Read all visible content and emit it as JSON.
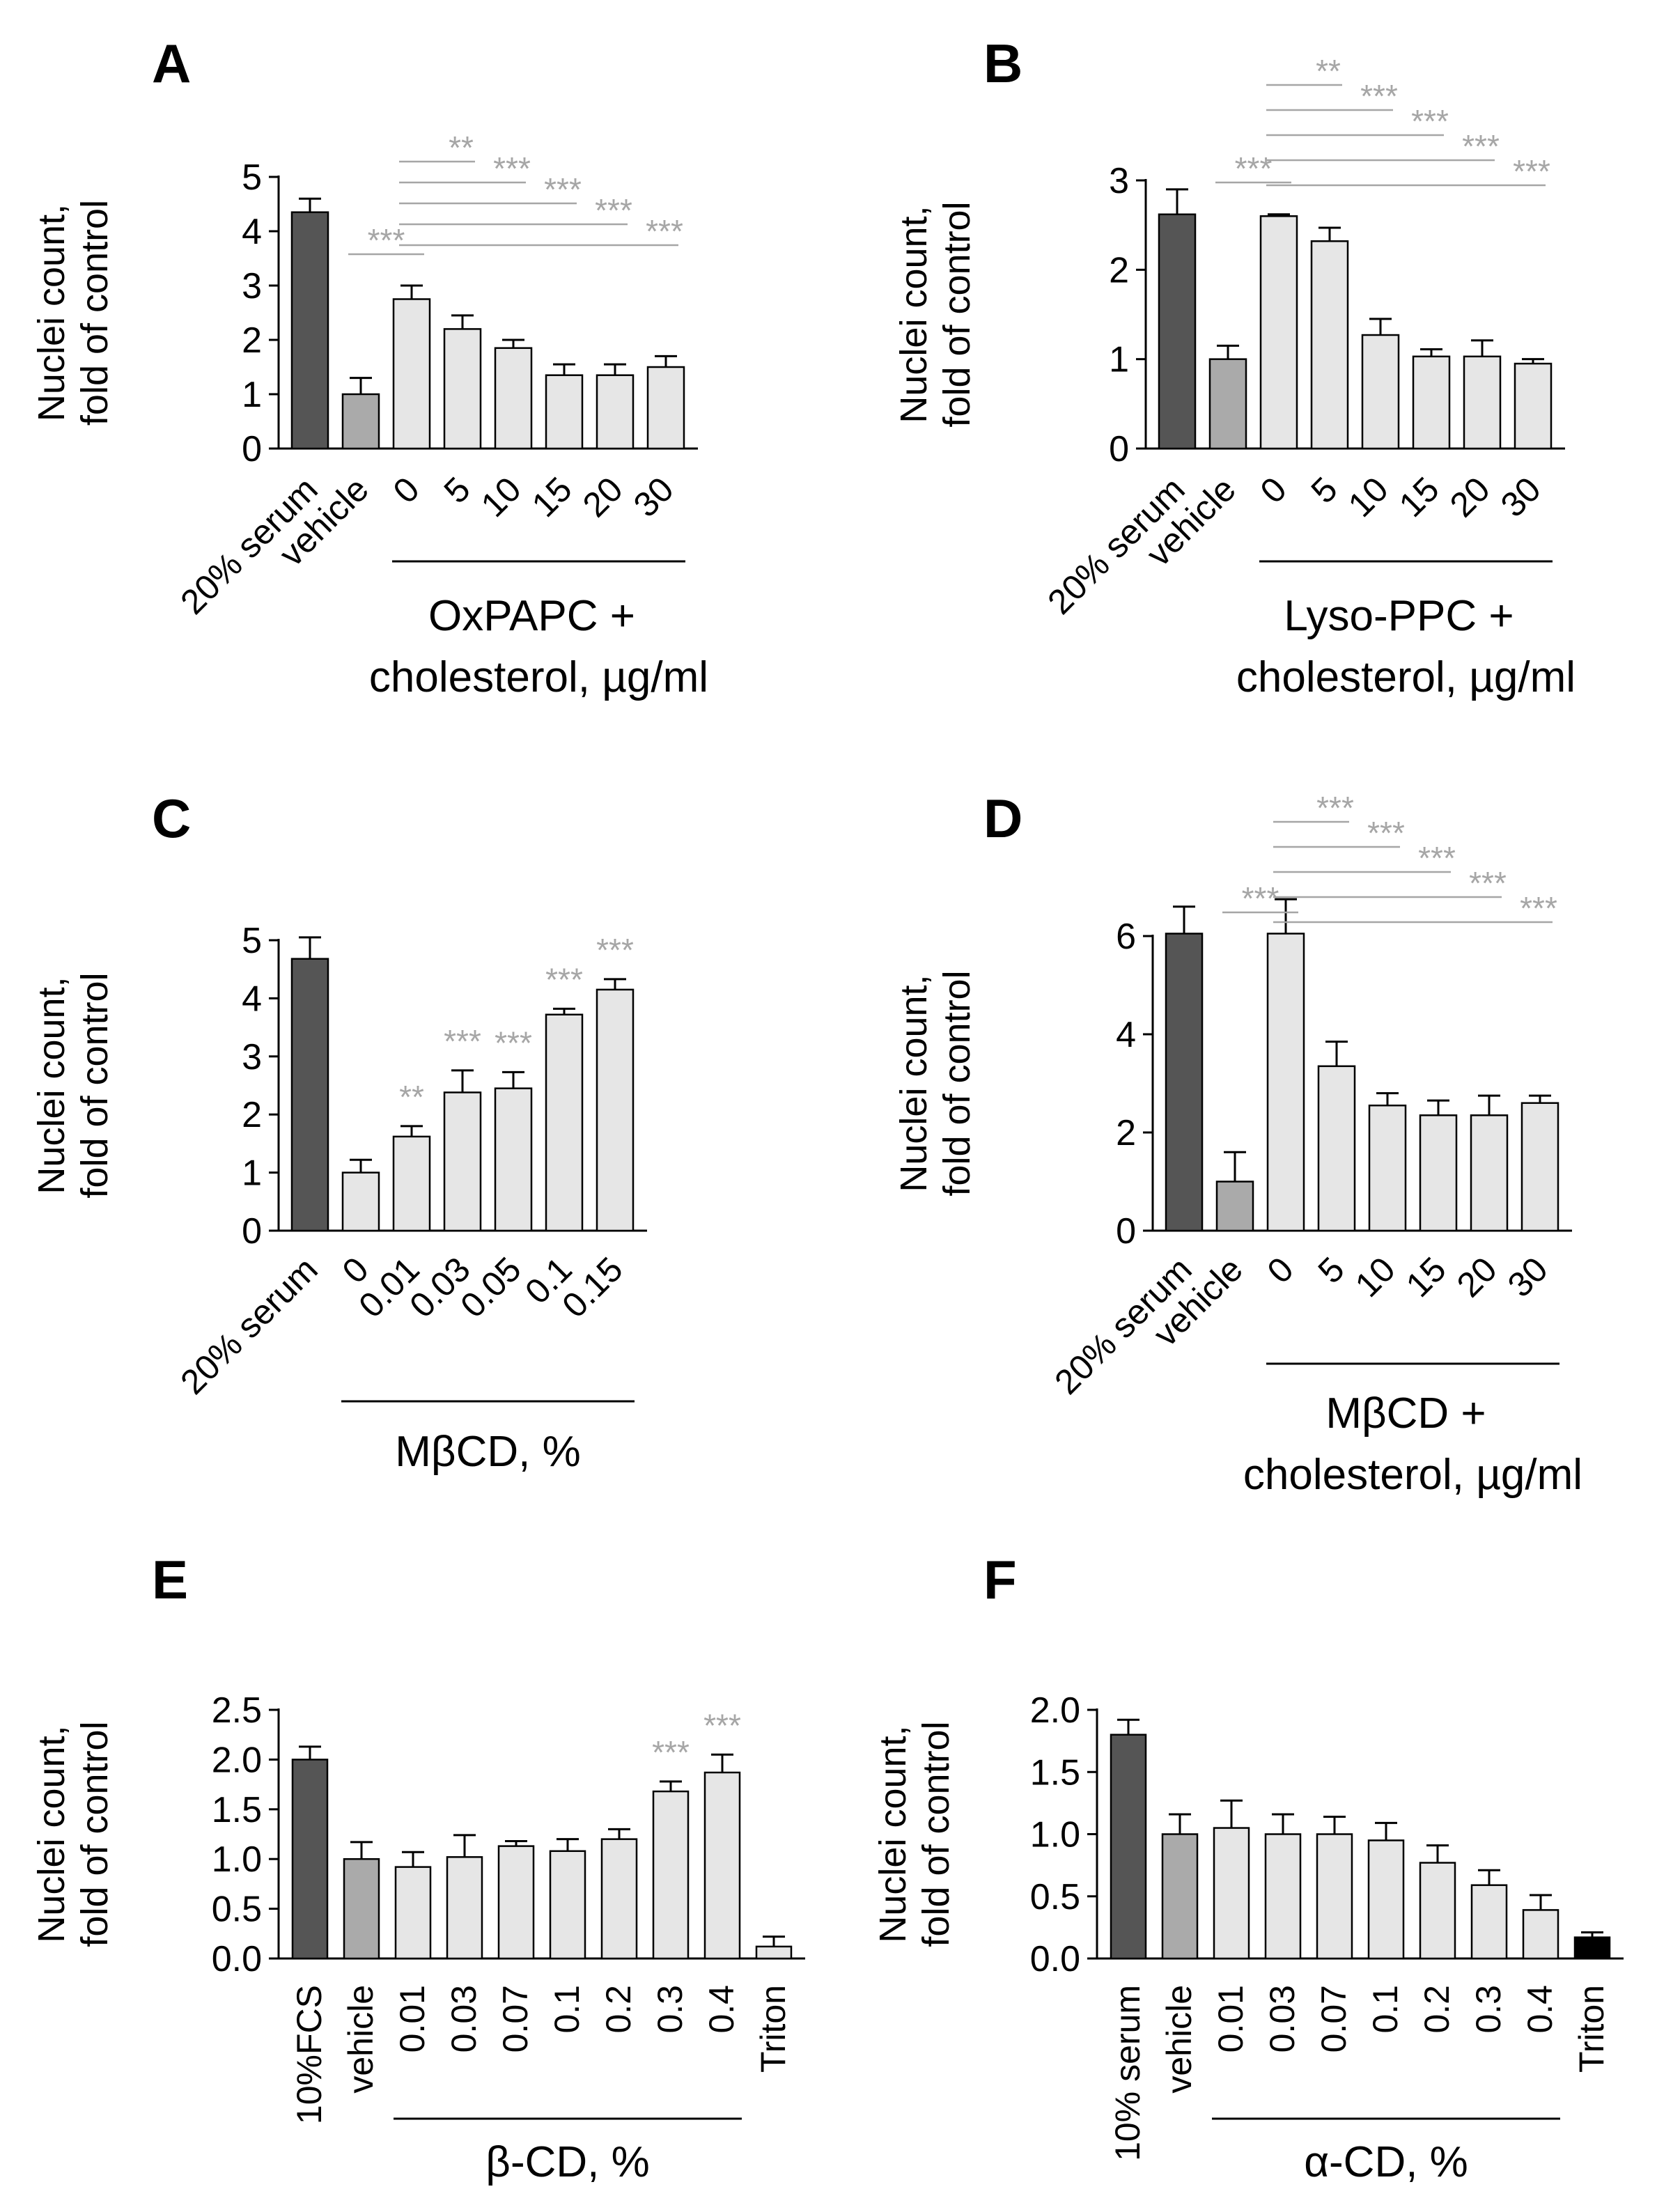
{
  "colors": {
    "dark": "#555555",
    "mid": "#aaaaaa",
    "light": "#e6e6e6",
    "black": "#000000",
    "star": "#a6a6a6",
    "axis": "#000000",
    "sigline": "#a6a6a6"
  },
  "y_label_line1": "Nuclei count,",
  "y_label_line2": "fold of control",
  "chart_data": [
    {
      "panel": "A",
      "type": "bar",
      "categories": [
        "20% serum",
        "vehicle",
        "0",
        "5",
        "10",
        "15",
        "20",
        "30"
      ],
      "values": [
        4.35,
        1.0,
        2.75,
        2.2,
        1.85,
        1.35,
        1.35,
        1.5
      ],
      "errors": [
        0.25,
        0.3,
        0.25,
        0.25,
        0.15,
        0.2,
        0.2,
        0.2
      ],
      "fills": [
        "dark",
        "mid",
        "light",
        "light",
        "light",
        "light",
        "light",
        "light"
      ],
      "ylim": [
        0,
        5
      ],
      "yticks": [
        0,
        1,
        2,
        3,
        4,
        5
      ],
      "ytick_labels": [
        "0",
        "1",
        "2",
        "3",
        "4",
        "5"
      ],
      "ylabel": "Nuclei count, fold of control",
      "group_label": [
        "OxPAPC +",
        "cholesterol, µg/ml"
      ],
      "group_span": [
        2,
        7
      ],
      "significance": [
        {
          "from": 1,
          "to": 2,
          "text": "***"
        },
        {
          "from": 2,
          "to": 3,
          "text": "**"
        },
        {
          "from": 2,
          "to": 4,
          "text": "***"
        },
        {
          "from": 2,
          "to": 5,
          "text": "***"
        },
        {
          "from": 2,
          "to": 6,
          "text": "***"
        },
        {
          "from": 2,
          "to": 7,
          "text": "***"
        }
      ],
      "bar_stars": []
    },
    {
      "panel": "B",
      "type": "bar",
      "categories": [
        "20% serum",
        "vehicle",
        "0",
        "5",
        "10",
        "15",
        "20",
        "30"
      ],
      "values": [
        2.62,
        1.0,
        2.6,
        2.32,
        1.27,
        1.03,
        1.03,
        0.95
      ],
      "errors": [
        0.28,
        0.15,
        0.02,
        0.15,
        0.18,
        0.08,
        0.18,
        0.05
      ],
      "fills": [
        "dark",
        "mid",
        "light",
        "light",
        "light",
        "light",
        "light",
        "light"
      ],
      "ylim": [
        0,
        3
      ],
      "yticks": [
        0,
        1,
        2,
        3
      ],
      "ytick_labels": [
        "0",
        "1",
        "2",
        "3"
      ],
      "ylabel": "Nuclei count, fold of control",
      "group_label": [
        "Lyso-PPC +",
        "cholesterol, µg/ml"
      ],
      "group_span": [
        2,
        7
      ],
      "significance": [
        {
          "from": 1,
          "to": 2,
          "text": "***"
        },
        {
          "from": 2,
          "to": 3,
          "text": "**"
        },
        {
          "from": 2,
          "to": 4,
          "text": "***"
        },
        {
          "from": 2,
          "to": 5,
          "text": "***"
        },
        {
          "from": 2,
          "to": 6,
          "text": "***"
        },
        {
          "from": 2,
          "to": 7,
          "text": "***"
        }
      ],
      "bar_stars": []
    },
    {
      "panel": "C",
      "type": "bar",
      "categories": [
        "20% serum",
        "0",
        "0.01",
        "0.03",
        "0.05",
        "0.1",
        "0.15"
      ],
      "values": [
        4.68,
        1.0,
        1.62,
        2.38,
        2.45,
        3.72,
        4.15
      ],
      "errors": [
        0.37,
        0.22,
        0.18,
        0.38,
        0.28,
        0.1,
        0.18
      ],
      "fills": [
        "dark",
        "light",
        "light",
        "light",
        "light",
        "light",
        "light"
      ],
      "ylim": [
        0,
        5
      ],
      "yticks": [
        0,
        1,
        2,
        3,
        4,
        5
      ],
      "ytick_labels": [
        "0",
        "1",
        "2",
        "3",
        "4",
        "5"
      ],
      "ylabel": "Nuclei count, fold of control",
      "group_label": [
        "MβCD, %"
      ],
      "group_span": [
        1,
        6
      ],
      "significance": [],
      "bar_stars": [
        {
          "bar": 2,
          "text": "**"
        },
        {
          "bar": 3,
          "text": "***"
        },
        {
          "bar": 4,
          "text": "***"
        },
        {
          "bar": 5,
          "text": "***"
        },
        {
          "bar": 6,
          "text": "***"
        }
      ]
    },
    {
      "panel": "D",
      "type": "bar",
      "categories": [
        "20% serum",
        "vehicle",
        "0",
        "5",
        "10",
        "15",
        "20",
        "30"
      ],
      "values": [
        6.05,
        1.0,
        6.05,
        3.35,
        2.55,
        2.35,
        2.35,
        2.6
      ],
      "errors": [
        0.55,
        0.6,
        0.7,
        0.5,
        0.25,
        0.3,
        0.4,
        0.15
      ],
      "fills": [
        "dark",
        "mid",
        "light",
        "light",
        "light",
        "light",
        "light",
        "light"
      ],
      "ylim": [
        0,
        7
      ],
      "yticks": [
        0,
        2,
        4,
        6
      ],
      "ytick_labels": [
        "0",
        "2",
        "4",
        "6"
      ],
      "ylabel": "Nuclei count, fold of control",
      "group_label": [
        "MβCD +",
        "cholesterol, µg/ml"
      ],
      "group_span": [
        2,
        7
      ],
      "significance": [
        {
          "from": 1,
          "to": 2,
          "text": "***"
        },
        {
          "from": 2,
          "to": 3,
          "text": "***"
        },
        {
          "from": 2,
          "to": 4,
          "text": "***"
        },
        {
          "from": 2,
          "to": 5,
          "text": "***"
        },
        {
          "from": 2,
          "to": 6,
          "text": "***"
        },
        {
          "from": 2,
          "to": 7,
          "text": "***"
        }
      ],
      "bar_stars": []
    },
    {
      "panel": "E",
      "type": "bar",
      "categories": [
        "10%FCS",
        "vehicle",
        "0.01",
        "0.03",
        "0.07",
        "0.1",
        "0.2",
        "0.3",
        "0.4",
        "Triton"
      ],
      "values": [
        2.0,
        1.0,
        0.92,
        1.02,
        1.13,
        1.08,
        1.2,
        1.68,
        1.87,
        0.12
      ],
      "errors": [
        0.13,
        0.17,
        0.15,
        0.22,
        0.05,
        0.12,
        0.1,
        0.1,
        0.18,
        0.1
      ],
      "fills": [
        "dark",
        "mid",
        "light",
        "light",
        "light",
        "light",
        "light",
        "light",
        "light",
        "light"
      ],
      "ylim": [
        0,
        2.5
      ],
      "yticks": [
        0,
        0.5,
        1.0,
        1.5,
        2.0,
        2.5
      ],
      "ytick_labels": [
        "0.0",
        "0.5",
        "1.0",
        "1.5",
        "2.0",
        "2.5"
      ],
      "ylabel": "Nuclei count, fold of control",
      "group_label": [
        "β-CD, %"
      ],
      "group_span": [
        2,
        8
      ],
      "significance": [],
      "bar_stars": [
        {
          "bar": 7,
          "text": "***"
        },
        {
          "bar": 8,
          "text": "***"
        }
      ]
    },
    {
      "panel": "F",
      "type": "bar",
      "categories": [
        "10% serum",
        "vehicle",
        "0.01",
        "0.03",
        "0.07",
        "0.1",
        "0.2",
        "0.3",
        "0.4",
        "Triton"
      ],
      "values": [
        1.8,
        1.0,
        1.05,
        1.0,
        1.0,
        0.95,
        0.77,
        0.59,
        0.39,
        0.17
      ],
      "errors": [
        0.12,
        0.16,
        0.22,
        0.16,
        0.14,
        0.14,
        0.14,
        0.12,
        0.12,
        0.04
      ],
      "fills": [
        "dark",
        "mid",
        "light",
        "light",
        "light",
        "light",
        "light",
        "light",
        "light",
        "black"
      ],
      "ylim": [
        0,
        2.0
      ],
      "yticks": [
        0,
        0.5,
        1.0,
        1.5,
        2.0
      ],
      "ytick_labels": [
        "0.0",
        "0.5",
        "1.0",
        "1.5",
        "2.0"
      ],
      "ylabel": "Nuclei count, fold of control",
      "group_label": [
        "α-CD, %"
      ],
      "group_span": [
        2,
        8
      ],
      "significance": [],
      "bar_stars": []
    }
  ]
}
